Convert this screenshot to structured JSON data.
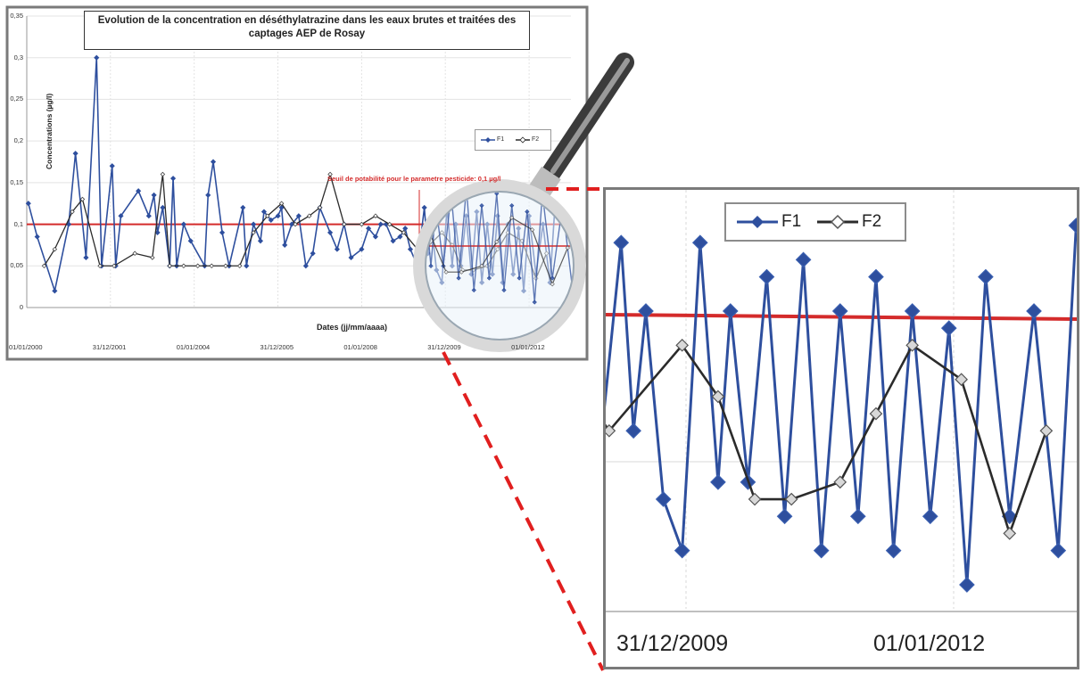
{
  "chart_data": {
    "type": "line",
    "title": "Evolution de la concentration en déséthylatrazine dans les eaux brutes et traitées des captages AEP de Rosay",
    "xlabel": "Dates (jj/mm/aaaa)",
    "ylabel": "Concentrations (µg/l)",
    "ylim": [
      0,
      0.35
    ],
    "yticks": [
      "0",
      "0,05",
      "0,1",
      "0,15",
      "0,2",
      "0,25",
      "0,3",
      "0,35"
    ],
    "xticks": [
      "01/01/2000",
      "31/12/2001",
      "01/01/2004",
      "31/12/2005",
      "01/01/2008",
      "31/12/2009",
      "01/01/2012"
    ],
    "threshold": {
      "value": 0.1,
      "label": "Seuil de potabilité pour le parametre pesticide: 0,1 µg/l",
      "color": "#d42b2b"
    },
    "legend_position": "right",
    "series": [
      {
        "name": "F1",
        "color": "#2e4f9e",
        "points": [
          [
            "2000-01-15",
            0.125
          ],
          [
            "2000-04-01",
            0.085
          ],
          [
            "2000-09-01",
            0.02
          ],
          [
            "2001-01-01",
            0.1
          ],
          [
            "2001-03-01",
            0.185
          ],
          [
            "2001-06-01",
            0.06
          ],
          [
            "2001-09-01",
            0.3
          ],
          [
            "2001-10-15",
            0.05
          ],
          [
            "2002-01-15",
            0.17
          ],
          [
            "2002-02-15",
            0.05
          ],
          [
            "2002-04-01",
            0.11
          ],
          [
            "2002-09-01",
            0.14
          ],
          [
            "2002-12-01",
            0.11
          ],
          [
            "2003-01-15",
            0.135
          ],
          [
            "2003-02-15",
            0.09
          ],
          [
            "2003-04-01",
            0.12
          ],
          [
            "2003-06-01",
            0.05
          ],
          [
            "2003-07-01",
            0.155
          ],
          [
            "2003-08-01",
            0.05
          ],
          [
            "2003-10-01",
            0.1
          ],
          [
            "2003-12-01",
            0.08
          ],
          [
            "2004-04-01",
            0.05
          ],
          [
            "2004-05-01",
            0.135
          ],
          [
            "2004-06-15",
            0.175
          ],
          [
            "2004-09-01",
            0.09
          ],
          [
            "2004-11-01",
            0.05
          ],
          [
            "2005-03-01",
            0.12
          ],
          [
            "2005-04-01",
            0.05
          ],
          [
            "2005-06-01",
            0.1
          ],
          [
            "2005-08-01",
            0.08
          ],
          [
            "2005-09-01",
            0.115
          ],
          [
            "2005-11-01",
            0.105
          ],
          [
            "2006-01-01",
            0.11
          ],
          [
            "2006-02-01",
            0.12
          ],
          [
            "2006-03-01",
            0.075
          ],
          [
            "2006-05-01",
            0.1
          ],
          [
            "2006-07-01",
            0.11
          ],
          [
            "2006-09-01",
            0.05
          ],
          [
            "2006-11-01",
            0.065
          ],
          [
            "2007-01-01",
            0.12
          ],
          [
            "2007-04-01",
            0.09
          ],
          [
            "2007-06-01",
            0.07
          ],
          [
            "2007-08-01",
            0.1
          ],
          [
            "2007-10-01",
            0.06
          ],
          [
            "2008-01-01",
            0.07
          ],
          [
            "2008-03-01",
            0.095
          ],
          [
            "2008-05-01",
            0.085
          ],
          [
            "2008-06-15",
            0.1
          ],
          [
            "2008-08-01",
            0.1
          ],
          [
            "2008-10-01",
            0.08
          ],
          [
            "2008-12-01",
            0.085
          ],
          [
            "2009-01-15",
            0.095
          ],
          [
            "2009-03-01",
            0.07
          ],
          [
            "2009-05-01",
            0.05
          ],
          [
            "2009-07-01",
            0.12
          ],
          [
            "2009-08-01",
            0.065
          ],
          [
            "2009-09-01",
            0.1
          ],
          [
            "2009-10-15",
            0.045
          ],
          [
            "2009-12-01",
            0.03
          ],
          [
            "2010-01-15",
            0.12
          ],
          [
            "2010-03-01",
            0.05
          ],
          [
            "2010-04-01",
            0.1
          ],
          [
            "2010-05-15",
            0.05
          ],
          [
            "2010-07-01",
            0.11
          ],
          [
            "2010-08-15",
            0.04
          ],
          [
            "2010-10-01",
            0.115
          ],
          [
            "2010-11-15",
            0.03
          ],
          [
            "2011-01-01",
            0.1
          ],
          [
            "2011-02-15",
            0.04
          ],
          [
            "2011-04-01",
            0.11
          ],
          [
            "2011-05-15",
            0.03
          ],
          [
            "2011-07-01",
            0.1
          ],
          [
            "2011-08-15",
            0.04
          ],
          [
            "2011-10-01",
            0.095
          ],
          [
            "2011-11-15",
            0.02
          ],
          [
            "2012-01-01",
            0.11
          ],
          [
            "2012-03-01",
            0.04
          ],
          [
            "2012-05-01",
            0.1
          ],
          [
            "2012-07-01",
            0.03
          ],
          [
            "2012-08-15",
            0.125
          ]
        ]
      },
      {
        "name": "F2",
        "color": "#2b2b2b",
        "points": [
          [
            "2000-06-01",
            0.05
          ],
          [
            "2000-09-01",
            0.07
          ],
          [
            "2001-02-01",
            0.115
          ],
          [
            "2001-05-01",
            0.13
          ],
          [
            "2001-10-01",
            0.05
          ],
          [
            "2002-02-01",
            0.05
          ],
          [
            "2002-08-01",
            0.065
          ],
          [
            "2003-01-01",
            0.06
          ],
          [
            "2003-04-01",
            0.16
          ],
          [
            "2003-06-01",
            0.05
          ],
          [
            "2003-10-01",
            0.05
          ],
          [
            "2004-02-01",
            0.05
          ],
          [
            "2004-06-01",
            0.05
          ],
          [
            "2004-10-01",
            0.05
          ],
          [
            "2005-02-01",
            0.05
          ],
          [
            "2005-06-01",
            0.09
          ],
          [
            "2005-10-01",
            0.11
          ],
          [
            "2006-02-01",
            0.125
          ],
          [
            "2006-06-01",
            0.1
          ],
          [
            "2006-10-01",
            0.11
          ],
          [
            "2007-01-01",
            0.12
          ],
          [
            "2007-04-01",
            0.16
          ],
          [
            "2007-08-01",
            0.1
          ],
          [
            "2008-01-01",
            0.1
          ],
          [
            "2008-05-01",
            0.11
          ],
          [
            "2008-09-01",
            0.1
          ],
          [
            "2009-01-01",
            0.09
          ],
          [
            "2009-06-01",
            0.065
          ],
          [
            "2009-12-01",
            0.09
          ],
          [
            "2010-03-01",
            0.075
          ],
          [
            "2010-06-01",
            0.045
          ],
          [
            "2010-09-01",
            0.045
          ],
          [
            "2011-01-01",
            0.05
          ],
          [
            "2011-04-01",
            0.07
          ],
          [
            "2011-07-01",
            0.09
          ],
          [
            "2011-11-01",
            0.08
          ],
          [
            "2012-03-01",
            0.035
          ],
          [
            "2012-06-01",
            0.065
          ]
        ]
      }
    ]
  },
  "zoom": {
    "xticks": [
      "31/12/2009",
      "01/01/2012"
    ],
    "legend": [
      "F1",
      "F2"
    ]
  }
}
